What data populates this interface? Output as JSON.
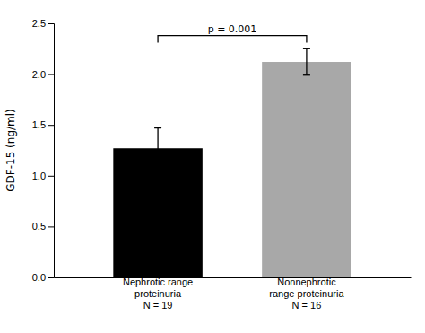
{
  "chart_data": {
    "type": "bar",
    "categories": [
      "Nephrotic range\nproteinuria\nN = 19",
      "Nonnephrotic\nrange proteinuria\nN = 16"
    ],
    "values": [
      1.27,
      2.12
    ],
    "errors": [
      0.2,
      0.13
    ],
    "colors": [
      "#000000",
      "#a8a8a8"
    ],
    "ylabel": "GDF-15 (ng/ml)",
    "ylim": [
      0,
      2.5
    ],
    "yticks": [
      {
        "value": 0.0,
        "label": "0.0"
      },
      0.5,
      {
        "value": 1.0,
        "label": "1.0"
      },
      1.5,
      {
        "value": 2.0,
        "label": "2.0"
      },
      2.5
    ],
    "annotations": [
      {
        "text": "p = 0.001",
        "y": 2.38
      }
    ]
  }
}
